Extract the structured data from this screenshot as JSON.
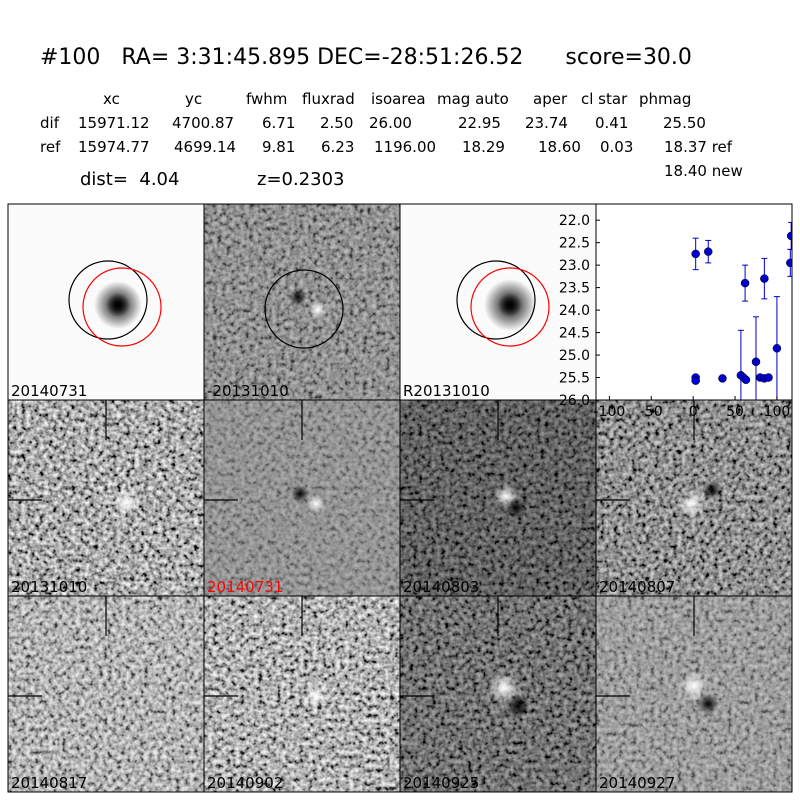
{
  "header": {
    "title": "#100   RA= 3:31:45.895 DEC=-28:51:26.52      score=30.0"
  },
  "table": {
    "columns": [
      "xc",
      "yc",
      "fwhm",
      "fluxrad",
      "isoarea",
      "mag auto",
      "aper",
      "cl star",
      "phmag"
    ],
    "rows": [
      {
        "label": "dif",
        "cells": [
          "15971.12",
          "4700.87",
          "6.71",
          "2.50",
          "26.00",
          "22.95",
          "23.74",
          "0.41",
          "25.50"
        ]
      },
      {
        "label": "ref",
        "cells": [
          "15974.77",
          "4699.14",
          "9.81",
          "6.23",
          "1196.00",
          "18.29",
          "18.60",
          "0.03",
          "18.37 ref"
        ]
      }
    ],
    "note": "18.40 new"
  },
  "dist": "dist=  4.04",
  "redshift": "z=0.2303",
  "panels": [
    {
      "label": "20140731"
    },
    {
      "label": "-20131010"
    },
    {
      "label": "R20131010"
    },
    {
      "label": "20131010"
    },
    {
      "label": "20140731",
      "label_color": "#ff0000"
    },
    {
      "label": "20140803"
    },
    {
      "label": "20140807"
    },
    {
      "label": "20140817"
    },
    {
      "label": "20140902"
    },
    {
      "label": "20140925"
    },
    {
      "label": "20140927"
    }
  ],
  "chart_data": {
    "type": "scatter",
    "xlim": [
      -116,
      118
    ],
    "ylim": [
      26,
      21.64
    ],
    "xticks": [
      -100,
      -50,
      0,
      50,
      100
    ],
    "yticks": [
      {
        "value": 22,
        "label": "22.0"
      },
      22.5,
      {
        "value": 23,
        "label": "23.0"
      },
      23.5,
      {
        "value": 24,
        "label": "24.0"
      },
      24.5,
      {
        "value": 25,
        "label": "25.0"
      },
      25.5,
      {
        "value": 26,
        "label": "26.0"
      }
    ],
    "series": [
      {
        "color": "#0000cc",
        "x": [
          3,
          18,
          3,
          3,
          35,
          57,
          60,
          62,
          63,
          75,
          80,
          85,
          85,
          90,
          100,
          116,
          117
        ],
        "values": [
          22.75,
          22.7,
          25.5,
          25.57,
          25.52,
          25.45,
          25.5,
          23.4,
          25.55,
          25.15,
          25.5,
          23.3,
          25.52,
          25.5,
          24.85,
          22.95,
          22.35
        ],
        "errors": [
          0.35,
          0.25,
          0.05,
          0.05,
          0.05,
          1.0,
          0.05,
          0.4,
          0.05,
          1.0,
          0.05,
          0.45,
          0.05,
          0.05,
          1.15,
          0.3,
          0.3
        ]
      }
    ]
  }
}
